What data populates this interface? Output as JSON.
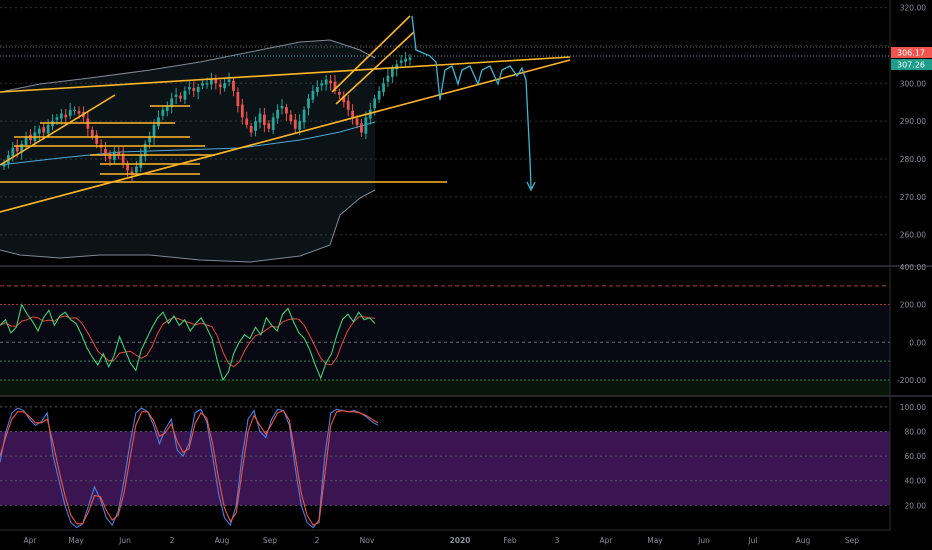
{
  "colors": {
    "background": "#000000",
    "grid": "#2e3034",
    "axis_text": "#8a8e97",
    "candle_up": "#26a69a",
    "candle_down": "#ef5350",
    "trendline": "#ffb627",
    "projection": "#3fb6d0",
    "band": "#7f8a99",
    "ma_line": "#4aa8d8",
    "cci_line": "#3fd07a",
    "cci_signal": "#e24b3b",
    "cci_neg": "#3b6fd6",
    "stoch_k": "#4f7fe0",
    "stoch_d": "#f2553b",
    "stoch_band": "#3a1552",
    "price_badge_red": "#f2554f",
    "price_badge_teal": "#1f9d8a"
  },
  "badges": {
    "top": "306.17",
    "bottom": "307.26"
  },
  "chart_data": [
    {
      "id": "price",
      "type": "candlestick",
      "title": "",
      "ylim": [
        252,
        322
      ],
      "yticks": [
        260,
        270,
        280,
        290,
        300,
        310,
        320
      ],
      "ytick_labels": [
        "260.00",
        "270.00",
        "280.00",
        "290.00",
        "300.00",
        "310.00",
        "320.00"
      ],
      "series": [
        {
          "kind": "close",
          "values": [
            279,
            281,
            283,
            282,
            284,
            286,
            285,
            287,
            288,
            287,
            289,
            290,
            291,
            292,
            291,
            293,
            293,
            292,
            291,
            288,
            286,
            284,
            283,
            281,
            280,
            282,
            281,
            279,
            277,
            276,
            278,
            281,
            284,
            286,
            289,
            291,
            293,
            294,
            296,
            297,
            296,
            298,
            299,
            298,
            299,
            300,
            300,
            301,
            300,
            299,
            300,
            301,
            298,
            294,
            291,
            289,
            287,
            290,
            292,
            289,
            288,
            291,
            293,
            294,
            292,
            290,
            288,
            290,
            293,
            296,
            298,
            299,
            300,
            301,
            300,
            298,
            297,
            295,
            293,
            291,
            289,
            287,
            291,
            293,
            296,
            298,
            300,
            302,
            304,
            305,
            306,
            306.5,
            306.8
          ]
        }
      ],
      "candles_range": [
        0,
        92
      ],
      "annotations": [
        "wedge",
        "horizontal supports",
        "projection path"
      ]
    },
    {
      "id": "cci",
      "type": "line",
      "ylim": [
        -280,
        400
      ],
      "yticks": [
        -200,
        0,
        200,
        400
      ],
      "ytick_labels": [
        "-200.00",
        "0.00",
        "200.00",
        "400.00"
      ],
      "reference_lines": [
        300,
        200,
        0,
        -100,
        -200
      ],
      "series": [
        {
          "name": "",
          "values": [
            90,
            120,
            50,
            80,
            200,
            150,
            110,
            60,
            130,
            170,
            90,
            140,
            160,
            120,
            100,
            40,
            -30,
            -80,
            -120,
            -60,
            -130,
            -70,
            30,
            -40,
            -110,
            -150,
            -40,
            20,
            80,
            130,
            160,
            100,
            140,
            90,
            120,
            60,
            100,
            130,
            80,
            20,
            -100,
            -200,
            -160,
            -60,
            0,
            40,
            20,
            80,
            40,
            130,
            90,
            60,
            150,
            180,
            110,
            50,
            20,
            -40,
            -120,
            -190,
            -110,
            -60,
            40,
            120,
            150,
            110,
            160,
            120,
            130,
            100
          ]
        }
      ]
    },
    {
      "id": "stochastic",
      "type": "line",
      "ylim": [
        0,
        108
      ],
      "yticks": [
        20,
        40,
        60,
        80,
        100
      ],
      "ytick_labels": [
        "20.00",
        "40.00",
        "60.00",
        "80.00",
        "100.00"
      ],
      "band": [
        20,
        80
      ],
      "series": [
        {
          "name": "",
          "values": [
            55,
            80,
            95,
            99,
            97,
            90,
            85,
            88,
            95,
            60,
            40,
            20,
            6,
            2,
            5,
            20,
            35,
            25,
            10,
            4,
            15,
            40,
            70,
            95,
            99,
            96,
            85,
            70,
            82,
            90,
            65,
            60,
            70,
            95,
            98,
            88,
            60,
            30,
            10,
            4,
            20,
            60,
            90,
            97,
            80,
            75,
            90,
            98,
            97,
            85,
            50,
            20,
            6,
            2,
            8,
            60,
            95,
            98,
            97,
            96,
            97,
            95,
            92,
            88,
            85
          ]
        },
        {
          "name": "",
          "values": [
            60,
            76,
            90,
            96,
            96,
            92,
            87,
            87,
            90,
            70,
            48,
            28,
            12,
            5,
            5,
            15,
            28,
            27,
            16,
            8,
            12,
            30,
            58,
            85,
            96,
            96,
            89,
            76,
            79,
            86,
            72,
            63,
            66,
            86,
            95,
            91,
            70,
            42,
            18,
            7,
            14,
            48,
            80,
            93,
            85,
            78,
            86,
            95,
            97,
            89,
            60,
            30,
            12,
            4,
            6,
            45,
            85,
            96,
            97,
            96,
            96,
            95,
            93,
            90,
            87
          ]
        }
      ]
    }
  ],
  "x_axis": {
    "labels": [
      "Apr",
      "May",
      "Jun",
      "2",
      "Aug",
      "Sep",
      "2",
      "Nov",
      "2020",
      "Feb",
      "3",
      "Apr",
      "May",
      "Jun",
      "Jul",
      "Aug",
      "Sep"
    ],
    "positions_index": [
      0,
      1,
      2,
      3,
      4,
      5,
      6,
      7,
      8,
      9,
      10,
      11,
      12,
      13,
      14,
      15,
      16
    ]
  }
}
